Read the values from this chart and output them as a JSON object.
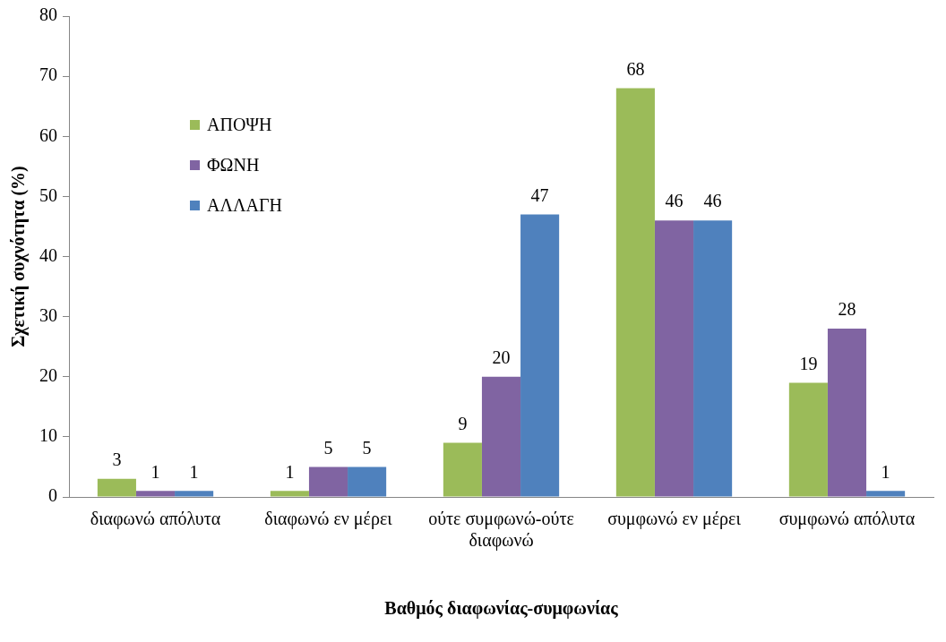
{
  "chart_data": {
    "type": "bar",
    "xlabel": "Βαθμός διαφωνίας-συμφωνίας",
    "ylabel": "Σχετική συχνότητα (%)",
    "categories": [
      "διαφωνώ απόλυτα",
      "διαφωνώ εν μέρει",
      "ούτε συμφωνώ-ούτε διαφωνώ",
      "συμφωνώ εν μέρει",
      "συμφωνώ απόλυτα"
    ],
    "series": [
      {
        "name": "ΑΠΟΨΗ",
        "color": "#9bbb59",
        "values": [
          3,
          1,
          9,
          68,
          19
        ]
      },
      {
        "name": "ΦΩΝΗ",
        "color": "#8064a2",
        "values": [
          1,
          5,
          20,
          46,
          28
        ]
      },
      {
        "name": "ΑΛΛΑΓΗ",
        "color": "#4f81bd",
        "values": [
          1,
          5,
          47,
          46,
          1
        ]
      }
    ],
    "ylim": [
      0,
      80
    ],
    "yticks": [
      0,
      10,
      20,
      30,
      40,
      50,
      60,
      70,
      80
    ],
    "grid": false,
    "legend": "top left",
    "data_labels": true
  }
}
